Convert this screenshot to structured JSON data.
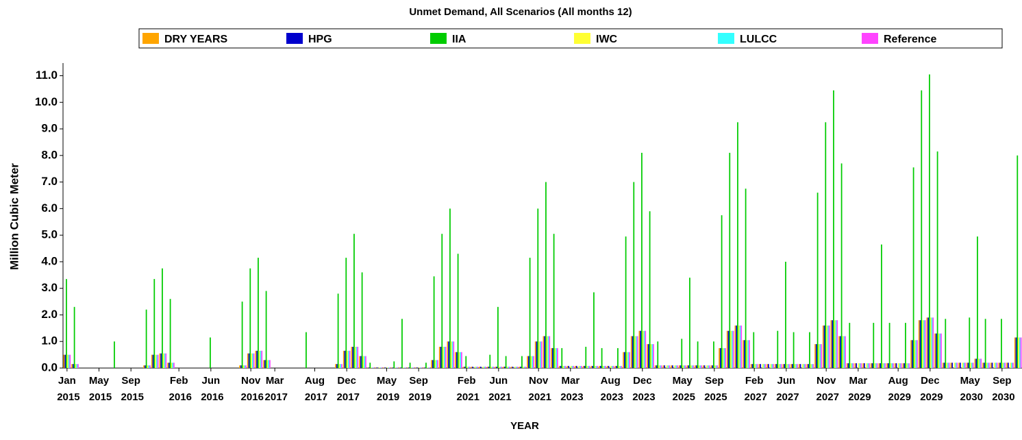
{
  "chart_data": {
    "type": "bar",
    "title": "Unmet Demand, All Scenarios  (All months 12)",
    "x_label": "YEAR",
    "y_label": "Million Cubic Meter",
    "legend": "top",
    "categories": [
      "Jan 2015",
      null,
      null,
      null,
      "May 2015",
      null,
      null,
      null,
      "Sep 2015",
      null,
      null,
      null,
      null,
      null,
      "Feb 2016",
      null,
      null,
      null,
      "Jun 2016",
      null,
      null,
      null,
      null,
      "Nov 2016",
      null,
      null,
      "Mar 2017",
      null,
      null,
      null,
      null,
      "Aug 2017",
      null,
      null,
      null,
      "Dec 2017",
      null,
      null,
      null,
      null,
      "May 2019",
      null,
      null,
      null,
      "Sep 2019",
      null,
      null,
      null,
      null,
      null,
      "Feb 2021",
      null,
      null,
      null,
      "Jun 2021",
      null,
      null,
      null,
      null,
      "Nov 2021",
      null,
      null,
      null,
      "Mar 2023",
      null,
      null,
      null,
      null,
      "Aug 2023",
      null,
      null,
      null,
      "Dec 2023",
      null,
      null,
      null,
      null,
      "May 2025",
      null,
      null,
      null,
      "Sep 2025",
      null,
      null,
      null,
      null,
      "Feb 2027",
      null,
      null,
      null,
      "Jun 2027",
      null,
      null,
      null,
      null,
      "Nov 2027",
      null,
      null,
      null,
      "Mar 2029",
      null,
      null,
      null,
      null,
      "Aug 2029",
      null,
      null,
      null,
      "Dec 2029",
      null,
      null,
      null,
      null,
      "May 2030",
      null,
      null,
      null,
      "Sep 2030",
      null,
      null
    ],
    "series": [
      {
        "name": "DRY YEARS",
        "color": "#ffa500",
        "values": [
          0.5,
          0.15,
          0,
          0,
          0,
          0,
          0,
          0,
          0,
          0,
          0.1,
          0.5,
          0.55,
          0.2,
          0,
          0,
          0,
          0,
          0,
          0,
          0,
          0,
          0.1,
          0.55,
          0.65,
          0.3,
          0,
          0,
          0,
          0,
          0,
          0,
          0,
          0,
          0.15,
          0.65,
          0.8,
          0.45,
          0.02,
          0.02,
          0.02,
          0.02,
          0.02,
          0.02,
          0.02,
          0.02,
          0.3,
          0.8,
          1.0,
          0.6,
          0.05,
          0.05,
          0.05,
          0.05,
          0.05,
          0.05,
          0.05,
          0.05,
          0.45,
          1.0,
          1.2,
          0.75,
          0.08,
          0.08,
          0.08,
          0.08,
          0.08,
          0.08,
          0.08,
          0.08,
          0.6,
          1.2,
          1.4,
          0.9,
          0.1,
          0.1,
          0.1,
          0.1,
          0.1,
          0.1,
          0.1,
          0.1,
          0.75,
          1.4,
          1.6,
          1.05,
          0.15,
          0.15,
          0.15,
          0.15,
          0.15,
          0.15,
          0.15,
          0.15,
          0.9,
          1.6,
          1.8,
          1.2,
          0.18,
          0.18,
          0.18,
          0.18,
          0.18,
          0.18,
          0.18,
          0.18,
          1.05,
          1.8,
          1.9,
          1.3,
          0.2,
          0.2,
          0.2,
          0.2,
          0.35,
          0.2,
          0.2,
          0.2,
          0.2,
          1.15
        ]
      },
      {
        "name": "HPG",
        "color": "#0000cd",
        "values": [
          0.5,
          0.15,
          0,
          0,
          0,
          0,
          0,
          0,
          0,
          0,
          0.1,
          0.5,
          0.55,
          0.2,
          0,
          0,
          0,
          0,
          0,
          0,
          0,
          0,
          0.1,
          0.55,
          0.65,
          0.3,
          0,
          0,
          0,
          0,
          0,
          0,
          0,
          0,
          0.15,
          0.65,
          0.8,
          0.45,
          0.02,
          0.02,
          0.02,
          0.02,
          0.02,
          0.02,
          0.02,
          0.02,
          0.3,
          0.8,
          1.0,
          0.6,
          0.05,
          0.05,
          0.05,
          0.05,
          0.05,
          0.05,
          0.05,
          0.05,
          0.45,
          1.0,
          1.2,
          0.75,
          0.08,
          0.08,
          0.08,
          0.08,
          0.08,
          0.08,
          0.08,
          0.08,
          0.6,
          1.2,
          1.4,
          0.9,
          0.1,
          0.1,
          0.1,
          0.1,
          0.1,
          0.1,
          0.1,
          0.1,
          0.75,
          1.4,
          1.6,
          1.05,
          0.15,
          0.15,
          0.15,
          0.15,
          0.15,
          0.15,
          0.15,
          0.15,
          0.9,
          1.6,
          1.8,
          1.2,
          0.18,
          0.18,
          0.18,
          0.18,
          0.18,
          0.18,
          0.18,
          0.18,
          1.05,
          1.8,
          1.9,
          1.3,
          0.2,
          0.2,
          0.2,
          0.2,
          0.35,
          0.2,
          0.2,
          0.2,
          0.2,
          1.15
        ]
      },
      {
        "name": "IIA",
        "color": "#00cc00",
        "values": [
          3.35,
          2.3,
          0,
          0,
          0,
          0,
          1.0,
          0,
          0,
          0,
          2.2,
          3.35,
          3.75,
          2.6,
          0,
          0,
          0,
          0,
          1.15,
          0,
          0,
          0,
          2.5,
          3.75,
          4.15,
          2.9,
          0,
          0,
          0,
          0,
          1.35,
          0,
          0,
          0,
          2.8,
          4.15,
          5.05,
          3.6,
          0.2,
          0,
          0,
          0.25,
          1.85,
          0.2,
          0,
          0.2,
          3.45,
          5.05,
          6.0,
          4.3,
          0.45,
          0,
          0,
          0.5,
          2.3,
          0.45,
          0,
          0.45,
          4.15,
          6.0,
          7.0,
          5.05,
          0.75,
          0,
          0,
          0.8,
          2.85,
          0.75,
          0,
          0.75,
          4.95,
          7.0,
          8.1,
          5.9,
          1.0,
          0,
          0,
          1.1,
          3.4,
          1.0,
          0,
          1.0,
          5.75,
          8.1,
          9.25,
          6.75,
          1.35,
          0,
          0,
          1.4,
          4.0,
          1.35,
          0,
          1.35,
          6.6,
          9.25,
          10.45,
          7.7,
          1.7,
          0,
          0,
          1.7,
          4.65,
          1.7,
          0,
          1.7,
          7.55,
          10.45,
          11.05,
          8.15,
          1.85,
          0,
          0,
          1.9,
          4.95,
          1.85,
          0,
          1.85,
          0,
          8.0
        ]
      },
      {
        "name": "IWC",
        "color": "#ffff33",
        "values": [
          0.5,
          0.15,
          0,
          0,
          0,
          0,
          0,
          0,
          0,
          0,
          0.1,
          0.5,
          0.55,
          0.2,
          0,
          0,
          0,
          0,
          0,
          0,
          0,
          0,
          0.1,
          0.55,
          0.65,
          0.3,
          0,
          0,
          0,
          0,
          0,
          0,
          0,
          0,
          0.15,
          0.65,
          0.8,
          0.45,
          0.02,
          0.02,
          0.02,
          0.02,
          0.02,
          0.02,
          0.02,
          0.02,
          0.3,
          0.8,
          1.0,
          0.6,
          0.05,
          0.05,
          0.05,
          0.05,
          0.05,
          0.05,
          0.05,
          0.05,
          0.45,
          1.0,
          1.2,
          0.75,
          0.08,
          0.08,
          0.08,
          0.08,
          0.08,
          0.08,
          0.08,
          0.08,
          0.6,
          1.2,
          1.4,
          0.9,
          0.1,
          0.1,
          0.1,
          0.1,
          0.1,
          0.1,
          0.1,
          0.1,
          0.75,
          1.4,
          1.6,
          1.05,
          0.15,
          0.15,
          0.15,
          0.15,
          0.15,
          0.15,
          0.15,
          0.15,
          0.9,
          1.6,
          1.8,
          1.2,
          0.18,
          0.18,
          0.18,
          0.18,
          0.18,
          0.18,
          0.18,
          0.18,
          1.05,
          1.8,
          1.9,
          1.3,
          0.2,
          0.2,
          0.2,
          0.2,
          0.35,
          0.2,
          0.2,
          0.2,
          0.2,
          1.15
        ]
      },
      {
        "name": "LULCC",
        "color": "#33ffff",
        "values": [
          0.5,
          0.15,
          0,
          0,
          0,
          0,
          0,
          0,
          0,
          0,
          0.1,
          0.5,
          0.55,
          0.2,
          0,
          0,
          0,
          0,
          0,
          0,
          0,
          0,
          0.1,
          0.55,
          0.65,
          0.3,
          0,
          0,
          0,
          0,
          0,
          0,
          0,
          0,
          0.15,
          0.65,
          0.8,
          0.45,
          0.02,
          0.02,
          0.02,
          0.02,
          0.02,
          0.02,
          0.02,
          0.02,
          0.3,
          0.8,
          1.0,
          0.6,
          0.05,
          0.05,
          0.05,
          0.05,
          0.05,
          0.05,
          0.05,
          0.05,
          0.45,
          1.0,
          1.2,
          0.75,
          0.08,
          0.08,
          0.08,
          0.08,
          0.08,
          0.08,
          0.08,
          0.08,
          0.6,
          1.2,
          1.4,
          0.9,
          0.1,
          0.1,
          0.1,
          0.1,
          0.1,
          0.1,
          0.1,
          0.1,
          0.75,
          1.4,
          1.6,
          1.05,
          0.15,
          0.15,
          0.15,
          0.15,
          0.15,
          0.15,
          0.15,
          0.15,
          0.9,
          1.6,
          1.8,
          1.2,
          0.18,
          0.18,
          0.18,
          0.18,
          0.18,
          0.18,
          0.18,
          0.18,
          1.05,
          1.8,
          1.9,
          1.3,
          0.2,
          0.2,
          0.2,
          0.2,
          0.35,
          0.2,
          0.2,
          0.2,
          0.2,
          1.15
        ]
      },
      {
        "name": "Reference",
        "color": "#ff44ff",
        "values": [
          0.5,
          0.15,
          0,
          0,
          0,
          0,
          0,
          0,
          0,
          0,
          0.1,
          0.5,
          0.55,
          0.2,
          0,
          0,
          0,
          0,
          0,
          0,
          0,
          0,
          0.1,
          0.55,
          0.65,
          0.3,
          0,
          0,
          0,
          0,
          0,
          0,
          0,
          0,
          0.15,
          0.65,
          0.8,
          0.45,
          0.02,
          0.02,
          0.02,
          0.02,
          0.02,
          0.02,
          0.02,
          0.02,
          0.3,
          0.8,
          1.0,
          0.6,
          0.05,
          0.05,
          0.05,
          0.05,
          0.05,
          0.05,
          0.05,
          0.05,
          0.45,
          1.0,
          1.2,
          0.75,
          0.08,
          0.08,
          0.08,
          0.08,
          0.08,
          0.08,
          0.08,
          0.08,
          0.6,
          1.2,
          1.4,
          0.9,
          0.1,
          0.1,
          0.1,
          0.1,
          0.1,
          0.1,
          0.1,
          0.1,
          0.75,
          1.4,
          1.6,
          1.05,
          0.15,
          0.15,
          0.15,
          0.15,
          0.15,
          0.15,
          0.15,
          0.15,
          0.9,
          1.6,
          1.8,
          1.2,
          0.18,
          0.18,
          0.18,
          0.18,
          0.18,
          0.18,
          0.18,
          0.18,
          1.05,
          1.8,
          1.9,
          1.3,
          0.2,
          0.2,
          0.2,
          0.2,
          0.35,
          0.2,
          0.2,
          0.2,
          0.2,
          1.15
        ]
      }
    ],
    "ylim": [
      0,
      11.4
    ],
    "yticks": [
      {
        "value": 0,
        "label": "0.0"
      },
      {
        "value": 1,
        "label": "1.0"
      },
      {
        "value": 2,
        "label": "2.0"
      },
      {
        "value": 3,
        "label": "3.0"
      },
      {
        "value": 4,
        "label": "4.0"
      },
      {
        "value": 5,
        "label": "5.0"
      },
      {
        "value": 6,
        "label": "6.0"
      },
      {
        "value": 7,
        "label": "7.0"
      },
      {
        "value": 8,
        "label": "8.0"
      },
      {
        "value": 9,
        "label": "9.0"
      },
      {
        "value": 10,
        "label": "10.0"
      },
      {
        "value": 11,
        "label": "11.0"
      }
    ],
    "grid": false
  }
}
